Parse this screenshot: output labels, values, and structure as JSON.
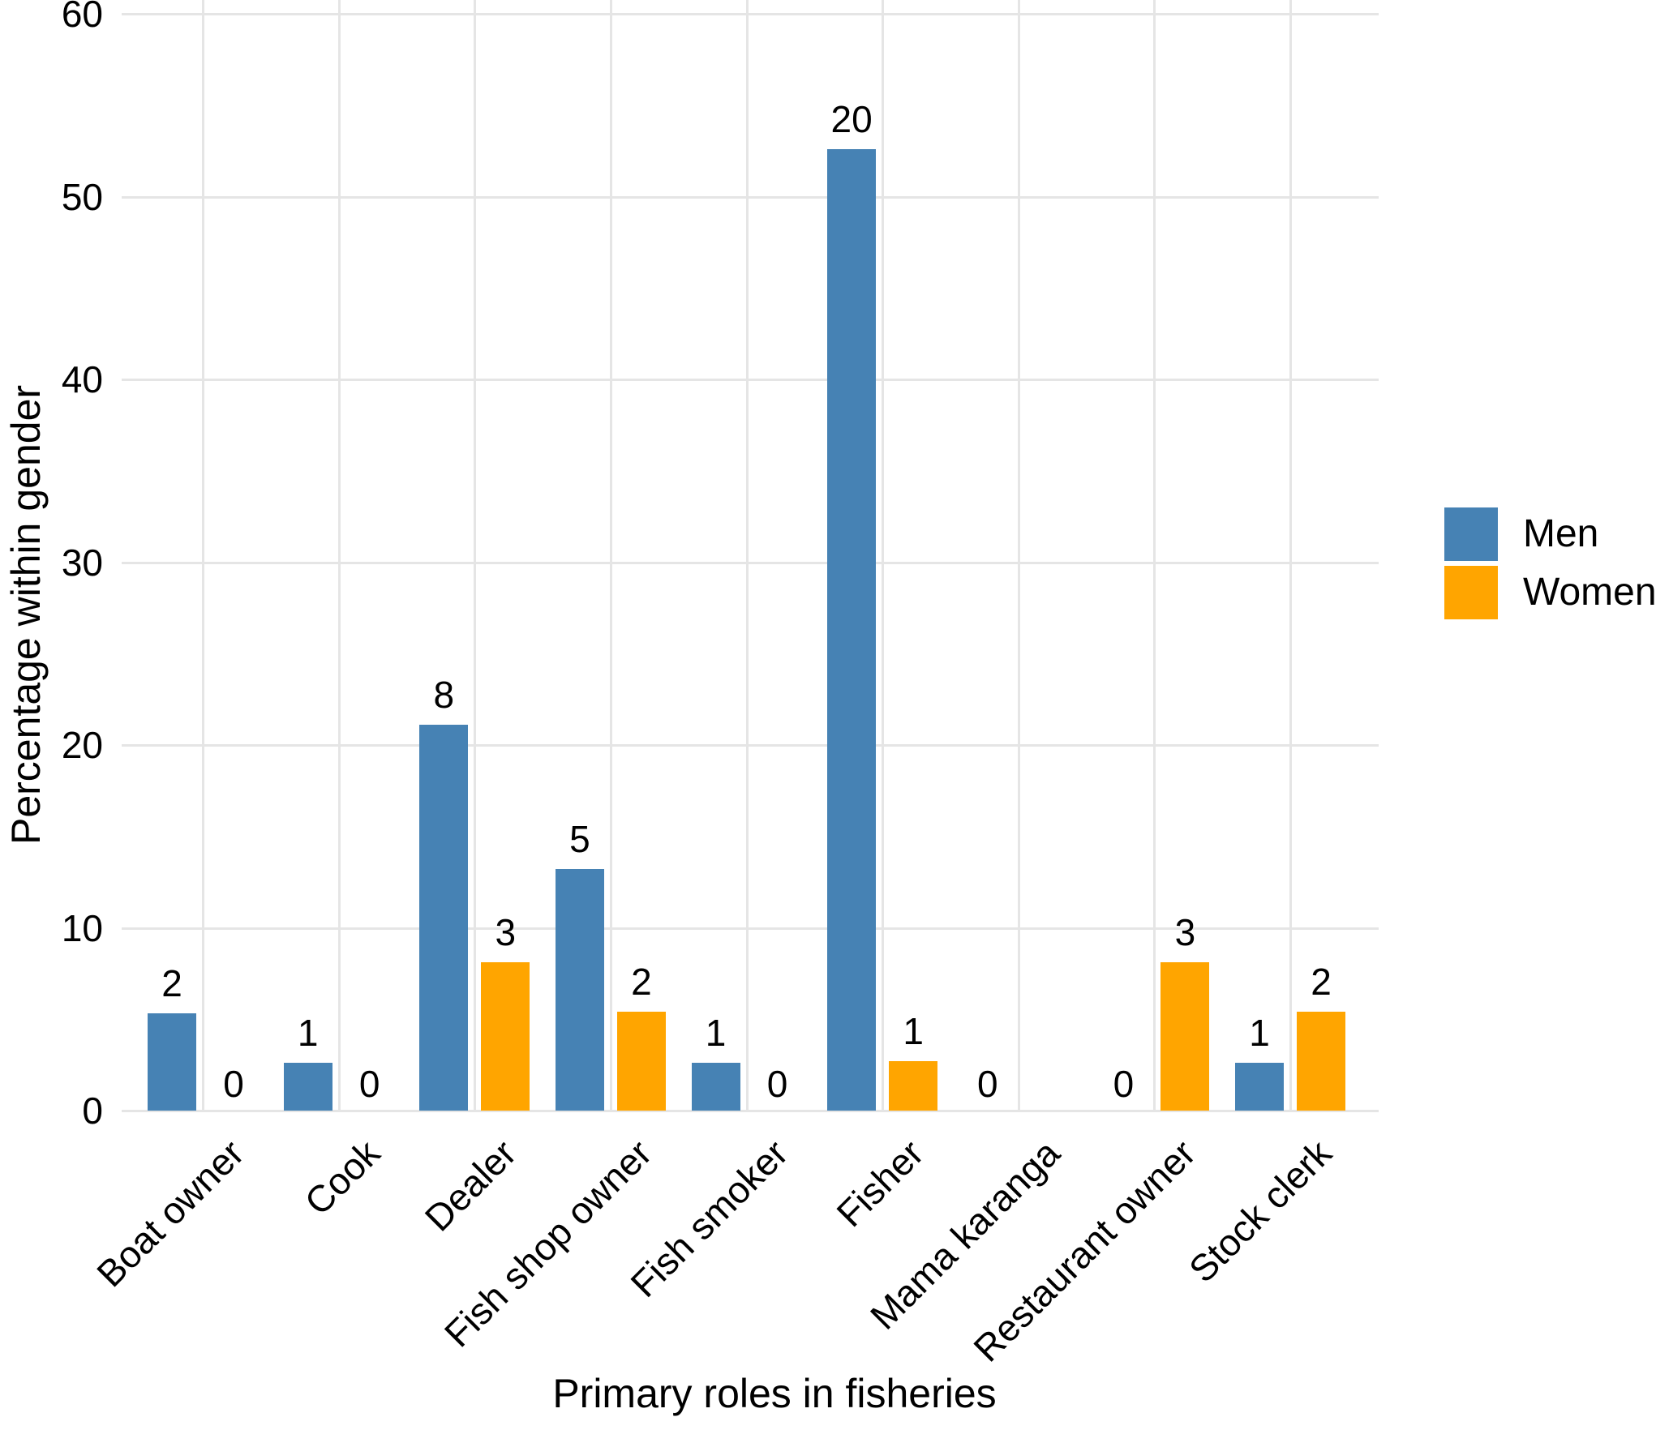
{
  "chart_data": {
    "type": "bar",
    "title": "",
    "xlabel": "Primary roles in fisheries",
    "ylabel": "Percentage within gender",
    "categories": [
      "Boat owner",
      "Cook",
      "Dealer",
      "Fish shop owner",
      "Fish smoker",
      "Fisher",
      "Mama karanga",
      "Restaurant owner",
      "Stock clerk"
    ],
    "series": [
      {
        "name": "Men",
        "color": "#4682B4",
        "values_pct": [
          5.3,
          2.6,
          21.1,
          13.2,
          2.6,
          52.6,
          0,
          0,
          2.6
        ],
        "count_labels": [
          "2",
          "1",
          "8",
          "5",
          "1",
          "20",
          "0",
          "0",
          "1"
        ]
      },
      {
        "name": "Women",
        "color": "#FFA500",
        "values_pct": [
          0,
          0,
          8.1,
          5.4,
          0,
          2.7,
          null,
          8.1,
          5.4
        ],
        "count_labels": [
          "0",
          "0",
          "3",
          "2",
          "0",
          "1",
          "",
          "3",
          "2"
        ]
      }
    ],
    "ylim": [
      0,
      60
    ],
    "yticks": [
      0,
      10,
      20,
      30,
      40,
      50,
      60
    ],
    "grid": true,
    "gridline_color": "#E5E5E5",
    "background": "#FFFFFF",
    "legend_position": "right"
  }
}
